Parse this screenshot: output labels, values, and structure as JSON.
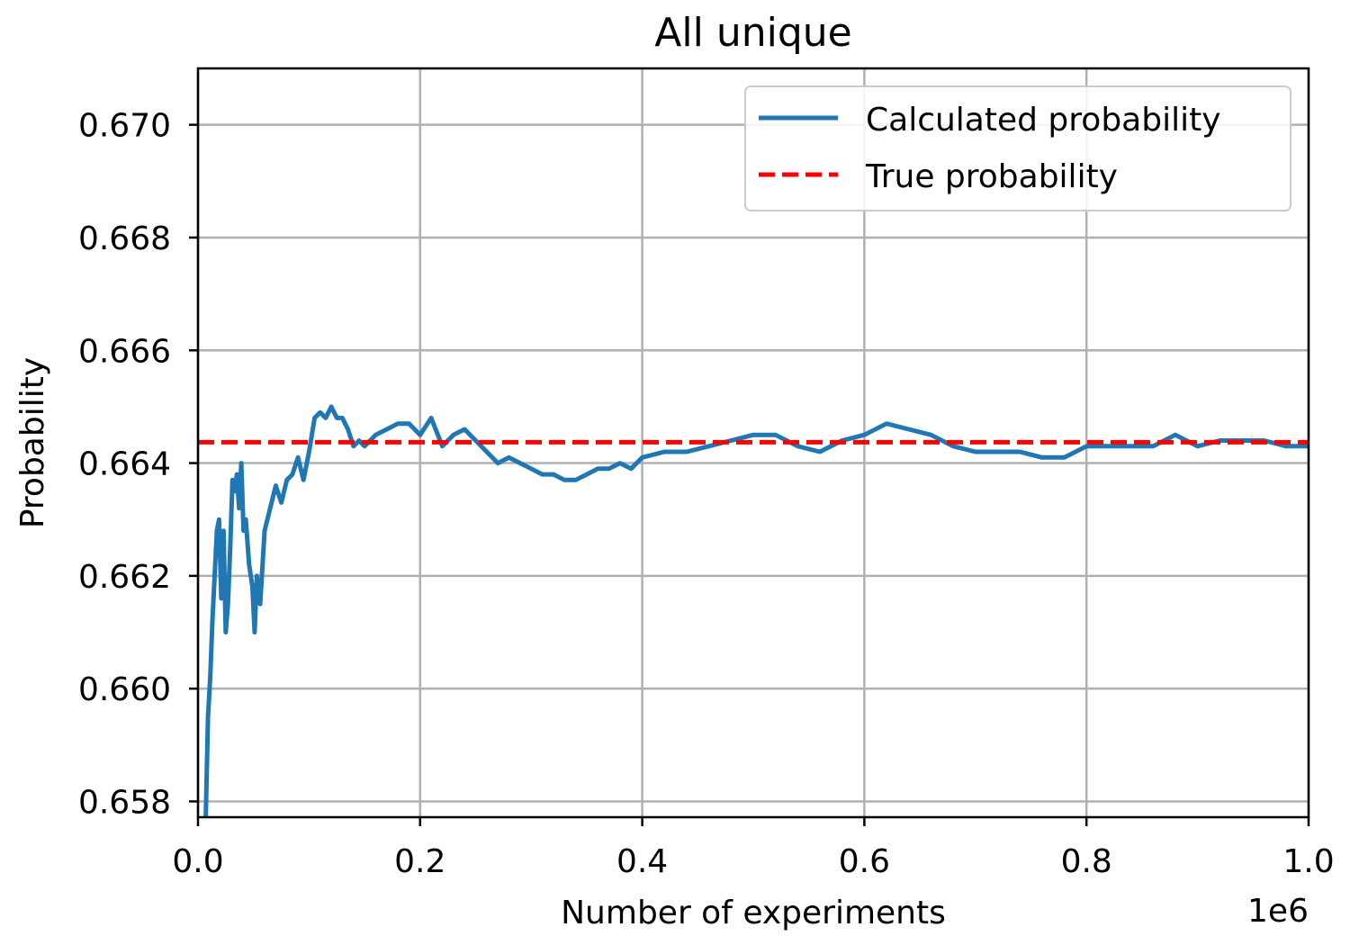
{
  "chart_data": {
    "type": "line",
    "title": "All unique",
    "xlabel": "Number of experiments",
    "ylabel": "Probability",
    "x_offset_label": "1e6",
    "xlim": [
      0,
      1000000
    ],
    "ylim": [
      0.65772,
      0.671
    ],
    "x_ticks": [
      0,
      200000,
      400000,
      600000,
      800000,
      1000000
    ],
    "x_tick_labels": [
      "0.0",
      "0.2",
      "0.4",
      "0.6",
      "0.8",
      "1.0"
    ],
    "y_ticks": [
      0.658,
      0.66,
      0.662,
      0.664,
      0.666,
      0.668,
      0.67
    ],
    "y_tick_labels": [
      "0.658",
      "0.660",
      "0.662",
      "0.664",
      "0.666",
      "0.668",
      "0.670"
    ],
    "grid": true,
    "legend": "top-right",
    "series": [
      {
        "name": "Calculated probability",
        "style": "solid",
        "color": "#1f77b4",
        "x": [
          7000,
          9000,
          11000,
          13000,
          15000,
          17000,
          19000,
          21000,
          23000,
          25000,
          27000,
          29000,
          31000,
          33000,
          35000,
          37000,
          39000,
          41000,
          43000,
          46000,
          49000,
          51000,
          53000,
          56000,
          60000,
          65000,
          70000,
          75000,
          80000,
          85000,
          90000,
          95000,
          100000,
          105000,
          110000,
          115000,
          120000,
          125000,
          130000,
          135000,
          140000,
          145000,
          150000,
          160000,
          170000,
          180000,
          190000,
          200000,
          210000,
          220000,
          230000,
          240000,
          250000,
          260000,
          270000,
          280000,
          290000,
          300000,
          310000,
          320000,
          330000,
          340000,
          350000,
          360000,
          370000,
          380000,
          390000,
          400000,
          420000,
          440000,
          460000,
          480000,
          500000,
          520000,
          540000,
          560000,
          580000,
          600000,
          620000,
          640000,
          660000,
          680000,
          700000,
          720000,
          740000,
          760000,
          780000,
          800000,
          820000,
          840000,
          860000,
          880000,
          900000,
          920000,
          940000,
          960000,
          980000,
          1000000
        ],
        "values": [
          0.6577,
          0.6595,
          0.6602,
          0.6612,
          0.662,
          0.6628,
          0.663,
          0.6616,
          0.6628,
          0.661,
          0.6615,
          0.6625,
          0.6637,
          0.6635,
          0.6638,
          0.6632,
          0.664,
          0.6628,
          0.663,
          0.6622,
          0.6618,
          0.661,
          0.662,
          0.6615,
          0.6628,
          0.6632,
          0.6636,
          0.6633,
          0.6637,
          0.6638,
          0.6641,
          0.6637,
          0.6642,
          0.6648,
          0.6649,
          0.6648,
          0.665,
          0.6648,
          0.6648,
          0.6646,
          0.6643,
          0.6644,
          0.6643,
          0.6645,
          0.6646,
          0.6647,
          0.6647,
          0.6645,
          0.6648,
          0.6643,
          0.6645,
          0.6646,
          0.6644,
          0.6642,
          0.664,
          0.6641,
          0.664,
          0.6639,
          0.6638,
          0.6638,
          0.6637,
          0.6637,
          0.6638,
          0.6639,
          0.6639,
          0.664,
          0.6639,
          0.6641,
          0.6642,
          0.6642,
          0.6643,
          0.6644,
          0.6645,
          0.6645,
          0.6643,
          0.6642,
          0.6644,
          0.6645,
          0.6647,
          0.6646,
          0.6645,
          0.6643,
          0.6642,
          0.6642,
          0.6642,
          0.6641,
          0.6641,
          0.6643,
          0.6643,
          0.6643,
          0.6643,
          0.6645,
          0.6643,
          0.6644,
          0.6644,
          0.6644,
          0.6643,
          0.6643
        ]
      },
      {
        "name": "True probability",
        "style": "dashed",
        "color": "#ff0000",
        "x": [
          0,
          1000000
        ],
        "values": [
          0.66437,
          0.66437
        ]
      }
    ]
  }
}
